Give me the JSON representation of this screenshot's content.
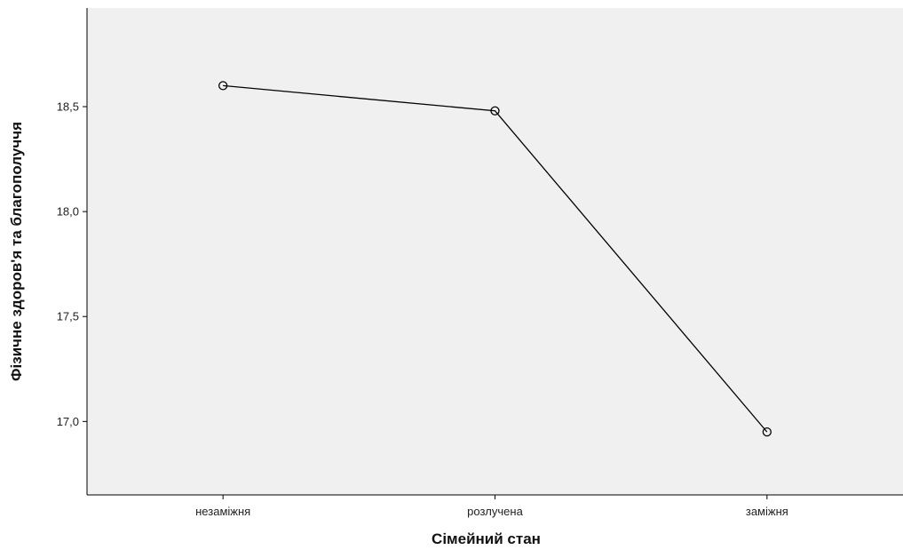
{
  "chart_data": {
    "type": "line",
    "title": "",
    "xlabel": "Сімейний стан",
    "ylabel": "Фізичне здоров'я та благополуччя",
    "categories": [
      "незаміжня",
      "розлучена",
      "заміжня"
    ],
    "series": [
      {
        "values": [
          18.6,
          18.48,
          16.95
        ]
      }
    ],
    "yticks": [
      "17,0",
      "17,5",
      "18,0",
      "18,5"
    ],
    "ytick_values": [
      17.0,
      17.5,
      18.0,
      18.5
    ],
    "ylim": [
      16.65,
      18.97
    ],
    "grid": false,
    "legend": "none",
    "colors": {
      "plot_background": "#f0f0f0",
      "line": "#000000",
      "axis": "#000000"
    }
  }
}
